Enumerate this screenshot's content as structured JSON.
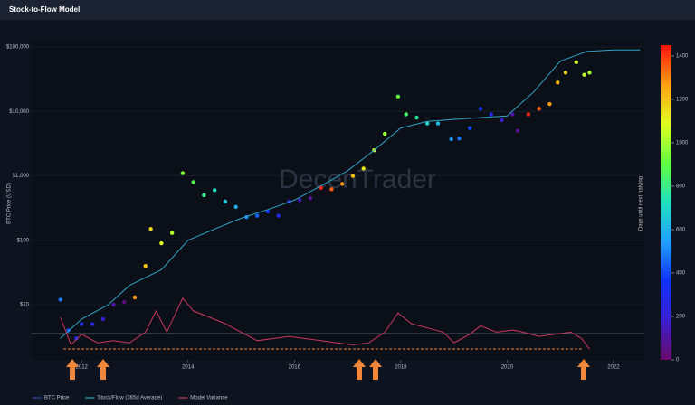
{
  "chart_data": {
    "type": "scatter",
    "title": "Stock-to-Flow Model",
    "y_label": "BTC Price (USD)",
    "watermark": "DecenTrader",
    "log_y": true,
    "xlim": [
      2011.06,
      2022.58
    ],
    "xticks": [
      2012,
      2014,
      2016,
      2018,
      2020,
      2022
    ],
    "ylim": [
      1.4,
      125000
    ],
    "yticks": [
      {
        "value": 10,
        "label": "$10"
      },
      {
        "value": 100,
        "label": "$100"
      },
      {
        "value": 1000,
        "label": "$1,000"
      },
      {
        "value": 10000,
        "label": "$10,000"
      },
      {
        "value": 100000,
        "label": "$100,000"
      }
    ],
    "y2lim": [
      -1,
      14
    ],
    "colorscale": [
      "#6a0a6a",
      "#3b1fd0",
      "#1030ff",
      "#20a0ff",
      "#20e0c0",
      "#60ff40",
      "#e0ff20",
      "#ffa010",
      "#ff1010"
    ],
    "colorbar": {
      "label": "Days until next halving",
      "lim": [
        0,
        1450
      ],
      "ticks": [
        0,
        200,
        400,
        600,
        800,
        1000,
        1200,
        1400
      ]
    },
    "series": [
      {
        "name": "BTC Price",
        "color": "#3a5bd9",
        "x": [
          2011.6,
          2011.75,
          2011.9,
          2012.0,
          2012.2,
          2012.4,
          2012.6,
          2012.8,
          2013.0,
          2013.2,
          2013.3,
          2013.5,
          2013.7,
          2013.9,
          2014.1,
          2014.3,
          2014.5,
          2014.7,
          2014.9,
          2015.1,
          2015.3,
          2015.5,
          2015.7,
          2015.9,
          2016.1,
          2016.3,
          2016.5,
          2016.7,
          2016.9,
          2017.1,
          2017.3,
          2017.5,
          2017.7,
          2017.95,
          2018.1,
          2018.3,
          2018.5,
          2018.7,
          2018.95,
          2019.1,
          2019.3,
          2019.5,
          2019.7,
          2019.9,
          2020.1,
          2020.2,
          2020.4,
          2020.6,
          2020.8,
          2020.95,
          2021.1,
          2021.3,
          2021.45,
          2021.55
        ],
        "values": [
          12,
          4,
          3,
          5,
          5,
          6,
          10,
          11,
          13,
          40,
          150,
          90,
          130,
          1100,
          800,
          500,
          600,
          400,
          330,
          230,
          240,
          280,
          240,
          400,
          420,
          450,
          650,
          620,
          750,
          1000,
          1300,
          2500,
          4500,
          17000,
          9000,
          8000,
          6500,
          6500,
          3700,
          3800,
          5500,
          11000,
          9000,
          7300,
          9000,
          5000,
          9000,
          11000,
          13000,
          28000,
          40000,
          58000,
          37000,
          40000
        ],
        "color_values": [
          475,
          420,
          365,
          330,
          255,
          183,
          110,
          37,
          1278,
          1205,
          1168,
          1095,
          1022,
          949,
          876,
          803,
          730,
          657,
          584,
          511,
          438,
          365,
          292,
          219,
          146,
          73,
          1424,
          1351,
          1278,
          1205,
          1132,
          1059,
          986,
          894,
          840,
          767,
          694,
          621,
          529,
          475,
          402,
          329,
          256,
          183,
          110,
          73,
          1424,
          1351,
          1278,
          1223,
          1168,
          1095,
          1040,
          1004
        ]
      },
      {
        "name": "Stock/Flow (365d Average)",
        "color": "#2fa4c8",
        "x": [
          2011.6,
          2012.0,
          2012.5,
          2012.9,
          2013.5,
          2014.0,
          2014.5,
          2015.0,
          2015.5,
          2016.0,
          2016.5,
          2017.0,
          2017.5,
          2018.0,
          2018.5,
          2019.0,
          2019.5,
          2020.0,
          2020.5,
          2021.0,
          2021.5,
          2022.0,
          2022.5
        ],
        "values": [
          3,
          6,
          10,
          20,
          35,
          100,
          150,
          220,
          300,
          420,
          700,
          1200,
          2500,
          5500,
          7000,
          7500,
          8000,
          8500,
          20000,
          60000,
          85000,
          90000,
          90000
        ]
      },
      {
        "name": "Model Variance",
        "color": "#c8385c",
        "axis": "y2",
        "x": [
          2011.6,
          2011.8,
          2012.0,
          2012.3,
          2012.6,
          2012.9,
          2013.2,
          2013.4,
          2013.6,
          2013.9,
          2014.1,
          2014.4,
          2014.7,
          2015.0,
          2015.3,
          2015.6,
          2015.9,
          2016.2,
          2016.5,
          2016.8,
          2017.1,
          2017.4,
          2017.7,
          2017.95,
          2018.2,
          2018.5,
          2018.8,
          2019.0,
          2019.3,
          2019.5,
          2019.8,
          2020.1,
          2020.3,
          2020.6,
          2020.9,
          2021.2,
          2021.4,
          2021.55
        ],
        "values": [
          1.0,
          -0.3,
          0.2,
          -0.2,
          -0.1,
          -0.2,
          0.3,
          1.3,
          0.3,
          1.9,
          1.3,
          1.0,
          0.7,
          0.3,
          -0.1,
          0.0,
          0.1,
          0.0,
          -0.1,
          -0.2,
          -0.3,
          -0.2,
          0.3,
          1.2,
          0.7,
          0.5,
          0.3,
          -0.2,
          0.2,
          0.6,
          0.3,
          0.4,
          0.3,
          0.1,
          0.2,
          0.3,
          0.0,
          -0.5
        ]
      }
    ]
  }
}
